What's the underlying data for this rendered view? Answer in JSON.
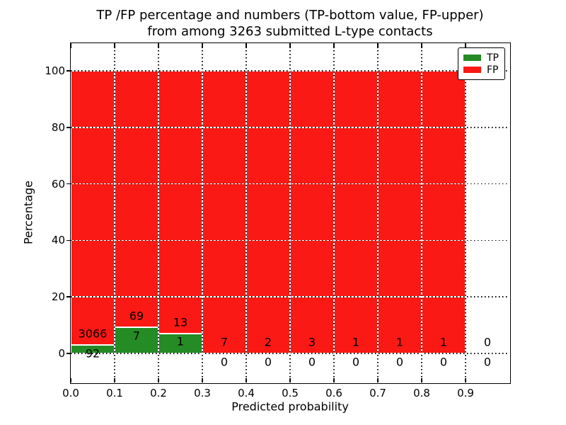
{
  "title": {
    "line1": "TP /FP percentage and numbers (TP-bottom value, FP-upper)",
    "line2": "from among 3263 submitted L-type contacts"
  },
  "axes": {
    "ylabel": "Percentage",
    "xlabel": "Predicted probability",
    "yticks": [
      0,
      20,
      40,
      60,
      80,
      100
    ],
    "xticks": [
      "0.0",
      "0.1",
      "0.2",
      "0.3",
      "0.4",
      "0.5",
      "0.6",
      "0.7",
      "0.8",
      "0.9"
    ]
  },
  "legend": {
    "items": [
      {
        "label": "TP",
        "color": "#258b25"
      },
      {
        "label": "FP",
        "color": "#fa1914"
      }
    ]
  },
  "colors": {
    "tp": "#258b25",
    "fp": "#fa1914",
    "bar_edge": "#ffffff",
    "grid": "#000000"
  },
  "chart_data": {
    "type": "bar",
    "stacked": true,
    "title": "TP /FP percentage and numbers (TP-bottom value, FP-upper) from among 3263 submitted L-type contacts",
    "xlabel": "Predicted probability",
    "ylabel": "Percentage",
    "xlim": [
      0.0,
      1.0
    ],
    "ylim": [
      -10.3,
      109.8
    ],
    "grid": "dotted",
    "legend_position": "upper right",
    "bin_width": 0.1,
    "categories": [
      "0.0-0.1",
      "0.1-0.2",
      "0.2-0.3",
      "0.3-0.4",
      "0.4-0.5",
      "0.5-0.6",
      "0.6-0.7",
      "0.7-0.8",
      "0.8-0.9",
      "0.9-1.0"
    ],
    "series": [
      {
        "name": "TP",
        "color": "#258b25",
        "counts": [
          92,
          7,
          1,
          0,
          0,
          0,
          0,
          0,
          0,
          0
        ]
      },
      {
        "name": "FP",
        "color": "#fa1914",
        "counts": [
          3066,
          69,
          13,
          7,
          2,
          3,
          1,
          1,
          1,
          0
        ]
      }
    ],
    "bars": [
      {
        "bin": "0.0-0.1",
        "tp": 92,
        "fp": 3066,
        "tp_pct": 2.91,
        "total_pct": 100,
        "draw": true
      },
      {
        "bin": "0.1-0.2",
        "tp": 7,
        "fp": 69,
        "tp_pct": 9.21,
        "total_pct": 100,
        "draw": true
      },
      {
        "bin": "0.2-0.3",
        "tp": 1,
        "fp": 13,
        "tp_pct": 7.14,
        "total_pct": 100,
        "draw": true
      },
      {
        "bin": "0.3-0.4",
        "tp": 0,
        "fp": 7,
        "tp_pct": 0,
        "total_pct": 100,
        "draw": true
      },
      {
        "bin": "0.4-0.5",
        "tp": 0,
        "fp": 2,
        "tp_pct": 0,
        "total_pct": 100,
        "draw": true
      },
      {
        "bin": "0.5-0.6",
        "tp": 0,
        "fp": 3,
        "tp_pct": 0,
        "total_pct": 100,
        "draw": true
      },
      {
        "bin": "0.6-0.7",
        "tp": 0,
        "fp": 1,
        "tp_pct": 0,
        "total_pct": 100,
        "draw": true
      },
      {
        "bin": "0.7-0.8",
        "tp": 0,
        "fp": 1,
        "tp_pct": 0,
        "total_pct": 100,
        "draw": true
      },
      {
        "bin": "0.8-0.9",
        "tp": 0,
        "fp": 1,
        "tp_pct": 0,
        "total_pct": 100,
        "draw": true
      },
      {
        "bin": "0.9-1.0",
        "tp": 0,
        "fp": 0,
        "tp_pct": 0,
        "total_pct": 0,
        "draw": false
      }
    ]
  }
}
